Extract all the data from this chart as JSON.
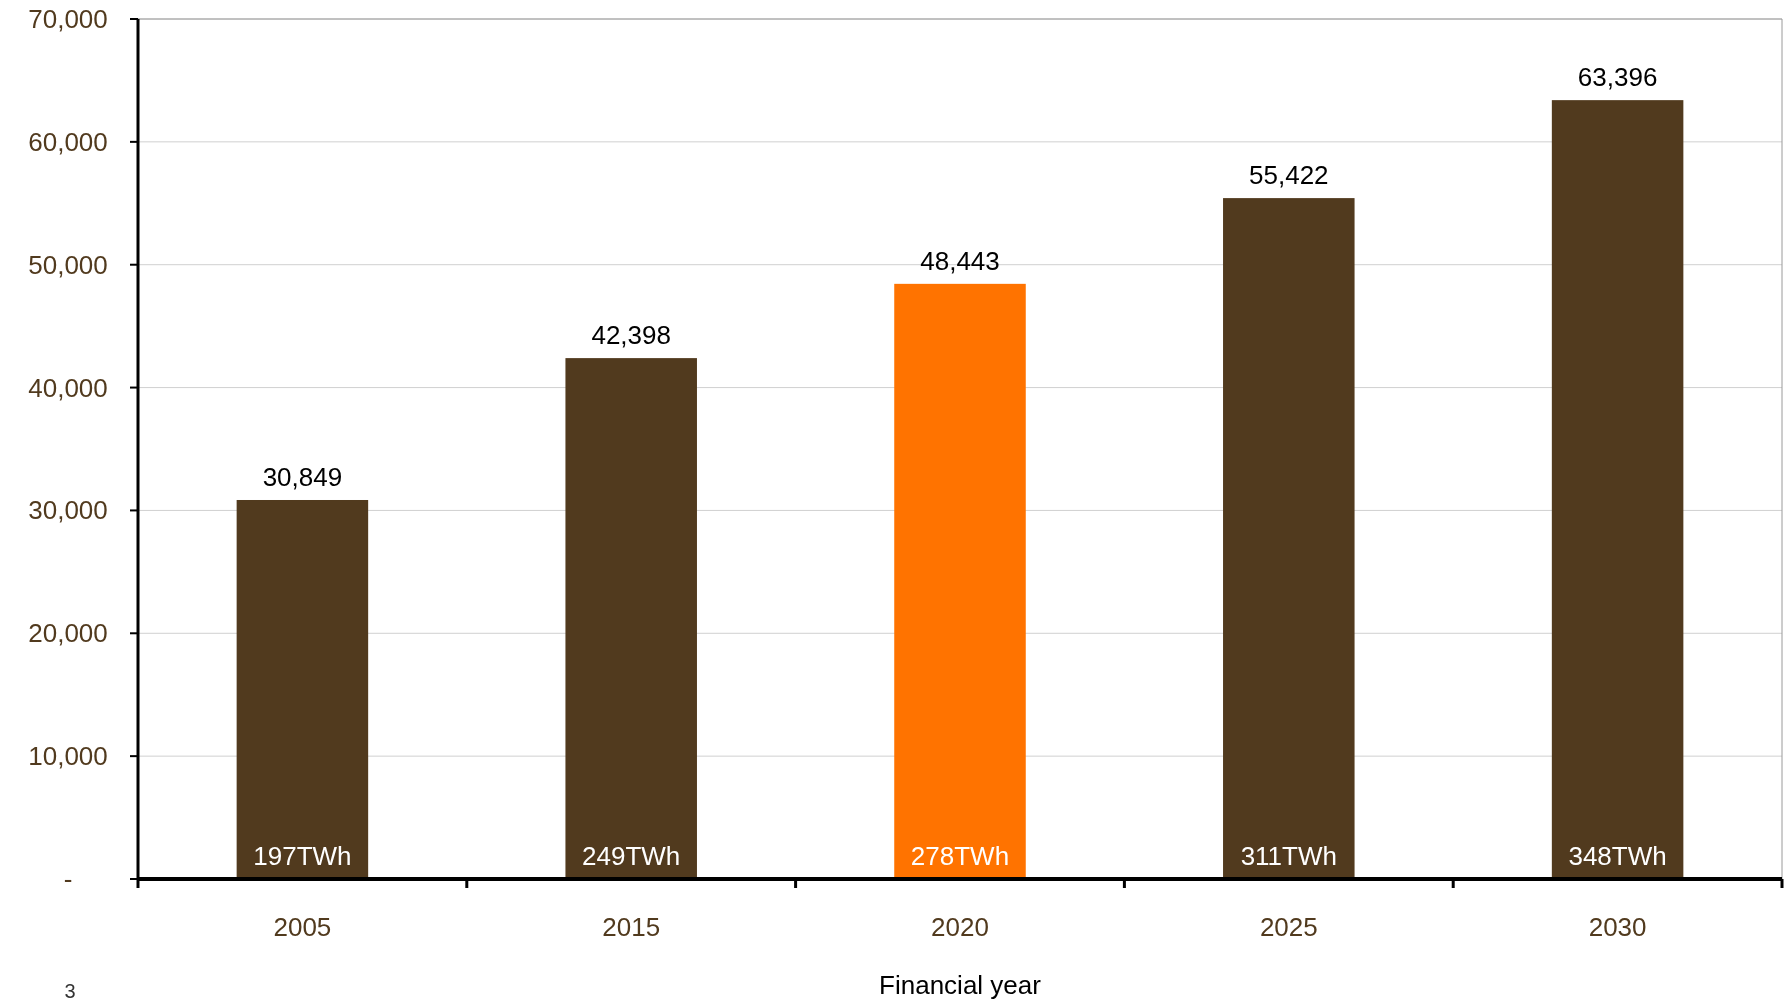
{
  "chart_data": {
    "type": "bar",
    "xlabel": "Financial year",
    "categories": [
      "2005",
      "2015",
      "2020",
      "2025",
      "2030"
    ],
    "values": [
      30849,
      42398,
      48443,
      55422,
      63396
    ],
    "colors": [
      "#513a1e",
      "#513a1e",
      "#ff7300",
      "#513a1e",
      "#513a1e"
    ],
    "value_labels": [
      "30,849",
      "42,398",
      "48,443",
      "55,422",
      "63,396"
    ],
    "ylim": [
      0,
      70000
    ],
    "yticks": [
      {
        "value": 0,
        "label": "-"
      },
      {
        "value": 10000,
        "label": "10,000"
      },
      {
        "value": 20000,
        "label": "20,000"
      },
      {
        "value": 30000,
        "label": "30,000"
      },
      {
        "value": 40000,
        "label": "40,000"
      },
      {
        "value": 50000,
        "label": "50,000"
      },
      {
        "value": 60000,
        "label": "60,000"
      },
      {
        "value": 70000,
        "label": "70,000"
      }
    ],
    "grid": "y",
    "annotations": [
      {
        "text": "197TWh",
        "x": "2005",
        "y": 0
      },
      {
        "text": "249TWh",
        "x": "2015",
        "y": 0
      },
      {
        "text": "278TWh",
        "x": "2020",
        "y": 0
      },
      {
        "text": "311TWh",
        "x": "2025",
        "y": 0
      },
      {
        "text": "348TWh",
        "x": "2030",
        "y": 0
      },
      "3"
    ]
  }
}
